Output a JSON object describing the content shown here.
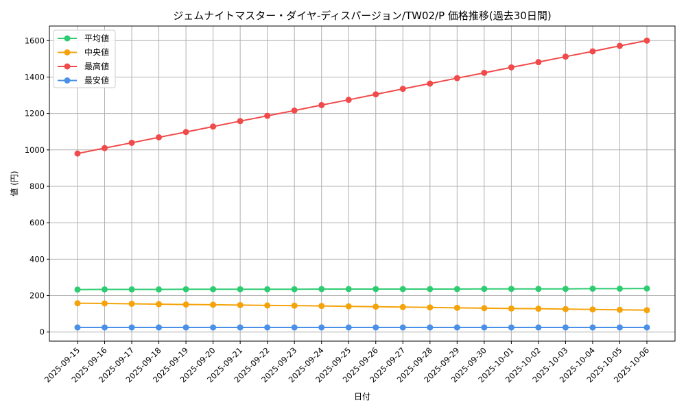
{
  "chart_data": {
    "type": "line",
    "title": "ジェムナイトマスター・ダイヤ-ディスパージョン/TW02/P 価格推移(過去30日間)",
    "xlabel": "日付",
    "ylabel": "値 (円)",
    "ylim": [
      -50,
      1680
    ],
    "yticks": [
      0,
      200,
      400,
      600,
      800,
      1000,
      1200,
      1400,
      1600
    ],
    "grid": true,
    "legend_position": "top-left",
    "categories": [
      "2025-09-15",
      "2025-09-16",
      "2025-09-17",
      "2025-09-18",
      "2025-09-19",
      "2025-09-20",
      "2025-09-21",
      "2025-09-22",
      "2025-09-23",
      "2025-09-24",
      "2025-09-25",
      "2025-09-26",
      "2025-09-27",
      "2025-09-28",
      "2025-09-29",
      "2025-09-30",
      "2025-10-01",
      "2025-10-02",
      "2025-10-03",
      "2025-10-04",
      "2025-10-05",
      "2025-10-06"
    ],
    "series": [
      {
        "name": "平均値",
        "color": "#2ecc71",
        "values": [
          233,
          234,
          234,
          234,
          235,
          235,
          235,
          235,
          235,
          236,
          236,
          236,
          236,
          236,
          236,
          237,
          237,
          237,
          237,
          238,
          238,
          239
        ]
      },
      {
        "name": "中央値",
        "color": "#f5a30a",
        "values": [
          158,
          157,
          155,
          153,
          151,
          150,
          148,
          146,
          145,
          143,
          141,
          139,
          137,
          135,
          133,
          131,
          129,
          128,
          126,
          124,
          122,
          120
        ]
      },
      {
        "name": "最高値",
        "color": "#f04a4a",
        "values": [
          980,
          1010,
          1039,
          1069,
          1098,
          1128,
          1158,
          1187,
          1216,
          1246,
          1275,
          1305,
          1335,
          1364,
          1394,
          1423,
          1453,
          1482,
          1512,
          1541,
          1571,
          1600
        ]
      },
      {
        "name": "最安値",
        "color": "#4a90e8",
        "values": [
          25,
          25,
          25,
          25,
          25,
          25,
          25,
          25,
          25,
          25,
          25,
          25,
          25,
          25,
          25,
          25,
          25,
          25,
          25,
          25,
          25,
          25
        ]
      }
    ]
  }
}
